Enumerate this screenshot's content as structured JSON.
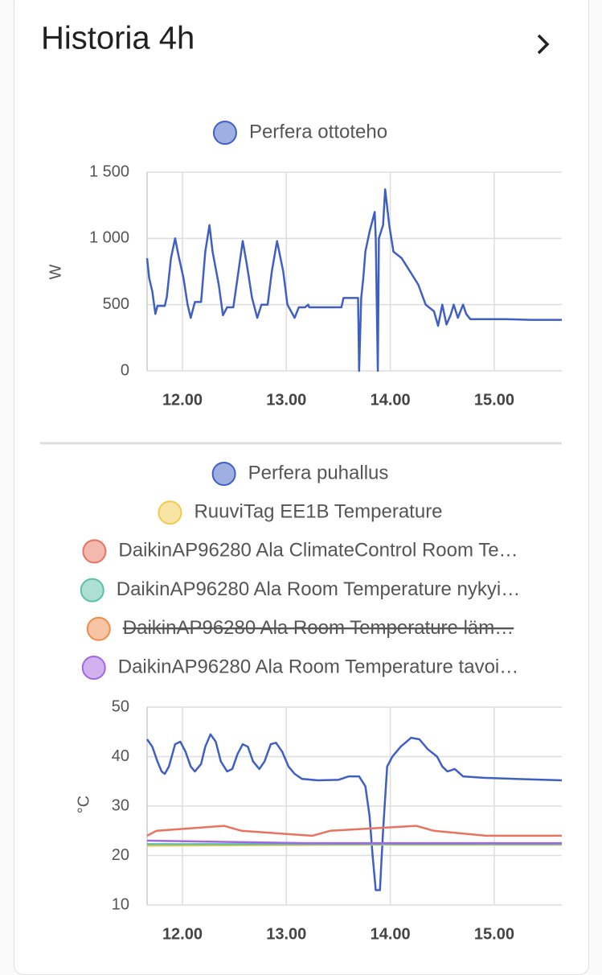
{
  "header": {
    "title": "Historia 4h"
  },
  "chart_data": [
    {
      "type": "line",
      "ylabel": "W",
      "xlim": [
        11.66,
        15.65
      ],
      "ylim": [
        0,
        1500
      ],
      "xticks": [
        {
          "value": 12,
          "label": "12.00"
        },
        {
          "value": 13,
          "label": "13.00"
        },
        {
          "value": 14,
          "label": "14.00"
        },
        {
          "value": 15,
          "label": "15.00"
        }
      ],
      "yticks": [
        0,
        {
          "value": 500,
          "label": "500"
        },
        {
          "value": 1000,
          "label": "1 000"
        },
        {
          "value": 1500,
          "label": "1 500"
        }
      ],
      "grid": true,
      "series": [
        {
          "name": "Perfera ottoteho",
          "color": "#3f5fc4",
          "x": [
            11.66,
            11.68,
            11.71,
            11.74,
            11.76,
            11.83,
            11.85,
            11.89,
            11.93,
            11.96,
            12.01,
            12.05,
            12.08,
            12.12,
            12.18,
            12.22,
            12.26,
            12.29,
            12.35,
            12.39,
            12.43,
            12.49,
            12.53,
            12.58,
            12.62,
            12.67,
            12.72,
            12.76,
            12.82,
            12.86,
            12.91,
            12.97,
            13.01,
            13.08,
            13.12,
            13.18,
            13.21,
            13.22,
            13.53,
            13.55,
            13.69,
            13.7,
            13.72,
            13.74,
            13.76,
            13.8,
            13.85,
            13.86,
            13.88,
            13.89,
            13.93,
            13.95,
            13.99,
            14.03,
            14.11,
            14.19,
            14.27,
            14.34,
            14.42,
            14.46,
            14.5,
            14.54,
            14.58,
            14.61,
            14.65,
            14.7,
            14.73,
            14.77,
            15.12,
            15.35,
            15.65
          ],
          "values": [
            850,
            700,
            600,
            430,
            490,
            490,
            560,
            850,
            1000,
            880,
            700,
            500,
            400,
            520,
            520,
            900,
            1100,
            900,
            650,
            420,
            480,
            480,
            700,
            980,
            800,
            550,
            400,
            500,
            500,
            750,
            980,
            750,
            500,
            400,
            480,
            480,
            500,
            480,
            480,
            550,
            550,
            0,
            550,
            700,
            900,
            1050,
            1200,
            1000,
            0,
            1000,
            1100,
            1370,
            1100,
            900,
            850,
            750,
            650,
            500,
            450,
            340,
            500,
            350,
            420,
            500,
            400,
            500,
            430,
            390,
            390,
            385,
            385
          ]
        }
      ]
    },
    {
      "type": "line",
      "ylabel": "°C",
      "xlim": [
        11.66,
        15.65
      ],
      "ylim": [
        10,
        50
      ],
      "xticks": [
        {
          "value": 12,
          "label": "12.00"
        },
        {
          "value": 13,
          "label": "13.00"
        },
        {
          "value": 14,
          "label": "14.00"
        },
        {
          "value": 15,
          "label": "15.00"
        }
      ],
      "yticks": [
        10,
        20,
        30,
        40,
        50
      ],
      "grid": true,
      "series": [
        {
          "name": "Perfera puhallus",
          "color": "#3f5fc4",
          "x": [
            11.66,
            11.71,
            11.76,
            11.8,
            11.83,
            11.87,
            11.93,
            11.98,
            12.03,
            12.08,
            12.12,
            12.18,
            12.22,
            12.27,
            12.32,
            12.37,
            12.43,
            12.48,
            12.53,
            12.58,
            12.63,
            12.68,
            12.74,
            12.79,
            12.85,
            12.9,
            12.96,
            13.02,
            13.08,
            13.15,
            13.3,
            13.5,
            13.6,
            13.7,
            13.76,
            13.8,
            13.83,
            13.86,
            13.9,
            13.93,
            13.97,
            14.02,
            14.1,
            14.2,
            14.28,
            14.36,
            14.45,
            14.5,
            14.55,
            14.62,
            14.7,
            14.9,
            15.2,
            15.65
          ],
          "values": [
            43.5,
            42,
            39,
            37,
            36.5,
            38,
            42.5,
            43,
            41,
            38,
            37,
            38.5,
            42,
            44.5,
            43,
            39,
            37,
            37.5,
            40.5,
            42.5,
            42,
            39,
            37.5,
            39,
            42.5,
            42.8,
            41,
            38,
            36.5,
            35.5,
            35.2,
            35.3,
            36,
            36,
            34,
            28,
            20,
            13,
            13,
            25,
            38,
            40,
            42,
            43.8,
            43.5,
            41.5,
            40,
            38,
            37,
            37.5,
            36,
            35.7,
            35.5,
            35.2
          ]
        },
        {
          "name": "RuuviTag EE1B Temperature",
          "color": "#f2c94c",
          "x": [
            11.66,
            13.5,
            15.65
          ],
          "values": [
            22,
            22.2,
            22.2
          ]
        },
        {
          "name": "DaikinAP96280 Ala ClimateControl Room Te…",
          "color": "#e8735f",
          "x": [
            11.66,
            11.75,
            12.4,
            12.57,
            13.25,
            13.42,
            14.25,
            14.42,
            14.92,
            15.65
          ],
          "values": [
            24,
            25,
            26,
            25,
            24,
            25,
            26,
            25,
            24,
            24
          ]
        },
        {
          "name": "DaikinAP96280 Ala Room Temperature nykyi…",
          "color": "#5cc0a8",
          "x": [
            11.66,
            15.65
          ],
          "values": [
            22.3,
            22.3
          ]
        },
        {
          "name": "DaikinAP96280 Ala Room Temperature läm…",
          "color": "#f08c4a",
          "hidden": true
        },
        {
          "name": "DaikinAP96280 Ala Room Temperature tavoi…",
          "color": "#a366e0",
          "x": [
            11.66,
            13.18,
            15.65
          ],
          "values": [
            23,
            22.5,
            22.5
          ]
        }
      ]
    }
  ]
}
